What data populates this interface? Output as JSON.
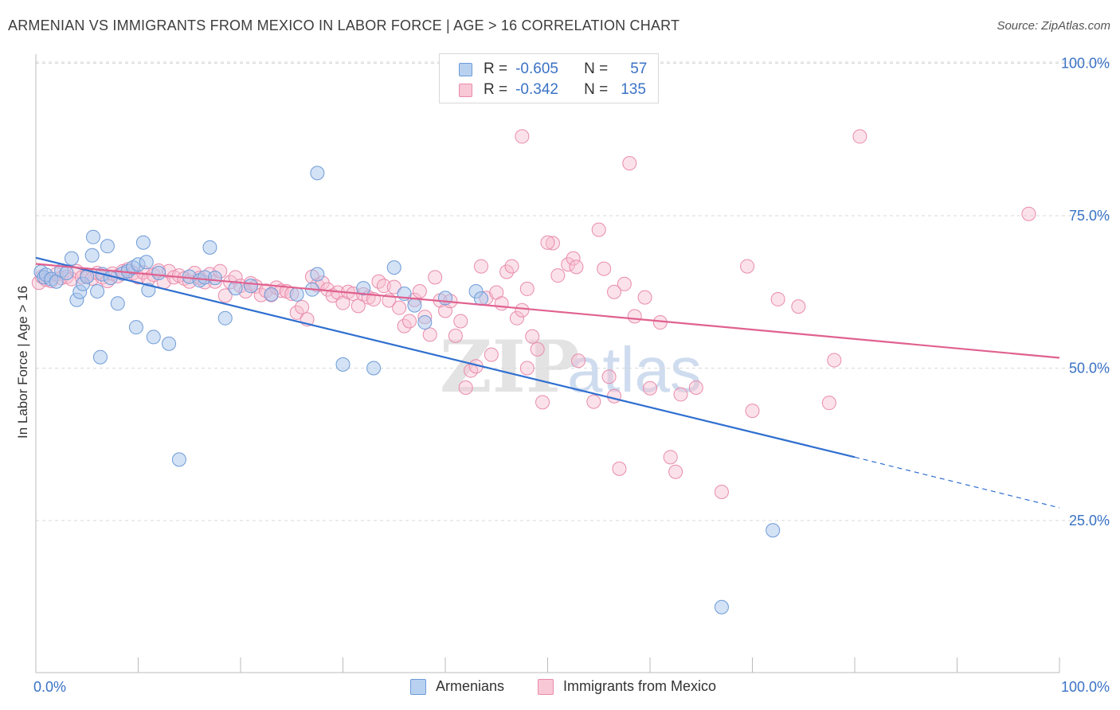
{
  "title": "ARMENIAN VS IMMIGRANTS FROM MEXICO IN LABOR FORCE | AGE > 16 CORRELATION CHART",
  "source": "Source: ZipAtlas.com",
  "watermark": "ZIPatlas",
  "legend_top": {
    "rows": [
      {
        "r_label": "R =",
        "r_value": "-0.605",
        "n_label": "N =",
        "n_value": "57"
      },
      {
        "r_label": "R =",
        "r_value": "-0.342",
        "n_label": "N =",
        "n_value": "135"
      }
    ]
  },
  "legend_bottom": {
    "items": [
      "Armenians",
      "Immigrants from Mexico"
    ]
  },
  "colors": {
    "blue_fill": "#a9c6ec",
    "blue_stroke": "#6d9bd8",
    "blue_line": "#2f6fcf",
    "pink_fill": "#f6bfd0",
    "pink_stroke": "#e98bab",
    "pink_line": "#e0618f",
    "grid": "#d9d9d9",
    "tick_label": "#3a72c4"
  },
  "chart_data": {
    "type": "scatter",
    "title": "ARMENIAN VS IMMIGRANTS FROM MEXICO IN LABOR FORCE | AGE > 16 CORRELATION CHART",
    "xlabel": "",
    "ylabel": "In Labor Force | Age > 16",
    "xlim": [
      0,
      100
    ],
    "ylim": [
      0,
      102
    ],
    "x_tick_labels": [
      "0.0%",
      "100.0%"
    ],
    "y_ticks": [
      25,
      50,
      75,
      100
    ],
    "y_tick_labels": [
      "25.0%",
      "50.0%",
      "75.0%",
      "100.0%"
    ],
    "grid": true,
    "legend_position": "bottom",
    "series": [
      {
        "name": "Armenians",
        "r": -0.605,
        "n": 57,
        "trend": {
          "x_start": 0,
          "y_start": 68.1,
          "x_end_solid": 80,
          "y_end_solid": 35.4,
          "x_end": 100,
          "y_end": 27.1
        },
        "points": [
          [
            0.5,
            65.8
          ],
          [
            0.8,
            64.9
          ],
          [
            1.0,
            65.3
          ],
          [
            1.5,
            64.6
          ],
          [
            2.0,
            64.2
          ],
          [
            2.5,
            66.0
          ],
          [
            3.0,
            65.6
          ],
          [
            3.5,
            68.0
          ],
          [
            4.0,
            61.2
          ],
          [
            4.3,
            62.5
          ],
          [
            4.6,
            63.8
          ],
          [
            5.0,
            65.0
          ],
          [
            5.5,
            68.5
          ],
          [
            5.6,
            71.5
          ],
          [
            6.0,
            62.6
          ],
          [
            6.3,
            51.8
          ],
          [
            6.5,
            65.4
          ],
          [
            7.0,
            70.0
          ],
          [
            7.3,
            64.8
          ],
          [
            8.0,
            60.6
          ],
          [
            8.5,
            65.5
          ],
          [
            9.0,
            65.9
          ],
          [
            9.5,
            66.5
          ],
          [
            9.8,
            56.7
          ],
          [
            10.0,
            67.0
          ],
          [
            10.5,
            70.6
          ],
          [
            10.8,
            67.4
          ],
          [
            11.0,
            62.8
          ],
          [
            11.5,
            55.1
          ],
          [
            12.0,
            65.6
          ],
          [
            13.0,
            54.0
          ],
          [
            14.0,
            35.0
          ],
          [
            15.0,
            65.0
          ],
          [
            16.0,
            64.4
          ],
          [
            16.5,
            64.9
          ],
          [
            17.0,
            69.8
          ],
          [
            17.5,
            64.8
          ],
          [
            18.5,
            58.2
          ],
          [
            19.5,
            63.1
          ],
          [
            21.0,
            63.5
          ],
          [
            23.0,
            62.1
          ],
          [
            25.5,
            62.1
          ],
          [
            27.0,
            62.9
          ],
          [
            27.5,
            65.4
          ],
          [
            27.5,
            82.0
          ],
          [
            30.0,
            50.6
          ],
          [
            32.0,
            63.1
          ],
          [
            33.0,
            50.0
          ],
          [
            35.0,
            66.5
          ],
          [
            36.0,
            62.2
          ],
          [
            37.0,
            60.3
          ],
          [
            38.0,
            57.5
          ],
          [
            40.0,
            61.5
          ],
          [
            43.0,
            62.6
          ],
          [
            43.5,
            61.4
          ],
          [
            72.0,
            23.4
          ],
          [
            67.0,
            10.8
          ]
        ]
      },
      {
        "name": "Immigrants from Mexico",
        "r": -0.342,
        "n": 135,
        "trend": {
          "x_start": 0,
          "y_start": 67.1,
          "x_end": 100,
          "y_end": 51.7
        },
        "points": [
          [
            0.3,
            64.0
          ],
          [
            0.6,
            65.0
          ],
          [
            1.0,
            64.5
          ],
          [
            1.5,
            64.3
          ],
          [
            2.0,
            65.4
          ],
          [
            2.5,
            64.8
          ],
          [
            3.0,
            65.0
          ],
          [
            3.5,
            64.6
          ],
          [
            4.0,
            65.9
          ],
          [
            4.5,
            64.9
          ],
          [
            5.0,
            65.3
          ],
          [
            5.5,
            64.7
          ],
          [
            6.0,
            65.6
          ],
          [
            6.5,
            64.9
          ],
          [
            7.0,
            64.3
          ],
          [
            7.5,
            65.5
          ],
          [
            8.0,
            65.1
          ],
          [
            8.5,
            65.9
          ],
          [
            9.0,
            66.2
          ],
          [
            9.5,
            65.6
          ],
          [
            10.0,
            64.9
          ],
          [
            10.5,
            65.7
          ],
          [
            11.0,
            64.6
          ],
          [
            11.5,
            65.3
          ],
          [
            12.0,
            66.0
          ],
          [
            12.5,
            64.1
          ],
          [
            13.0,
            65.9
          ],
          [
            13.5,
            64.9
          ],
          [
            14.0,
            65.2
          ],
          [
            14.5,
            64.7
          ],
          [
            15.0,
            64.2
          ],
          [
            15.5,
            65.6
          ],
          [
            16.0,
            64.8
          ],
          [
            16.5,
            64.1
          ],
          [
            17.0,
            65.4
          ],
          [
            17.5,
            64.2
          ],
          [
            18.0,
            65.9
          ],
          [
            18.5,
            61.9
          ],
          [
            19.0,
            64.1
          ],
          [
            19.5,
            64.9
          ],
          [
            20.0,
            63.5
          ],
          [
            20.5,
            62.6
          ],
          [
            21.0,
            63.9
          ],
          [
            21.5,
            63.4
          ],
          [
            22.0,
            62.0
          ],
          [
            22.5,
            62.7
          ],
          [
            23.0,
            62.0
          ],
          [
            23.5,
            63.2
          ],
          [
            24.0,
            62.7
          ],
          [
            24.5,
            62.6
          ],
          [
            25.0,
            62.2
          ],
          [
            25.5,
            59.1
          ],
          [
            26.0,
            60.0
          ],
          [
            26.5,
            58.0
          ],
          [
            27.0,
            65.0
          ],
          [
            27.5,
            63.6
          ],
          [
            28.0,
            64.0
          ],
          [
            28.5,
            62.9
          ],
          [
            29.0,
            61.9
          ],
          [
            29.5,
            62.4
          ],
          [
            30.0,
            60.7
          ],
          [
            30.5,
            62.5
          ],
          [
            31.0,
            62.2
          ],
          [
            31.5,
            60.2
          ],
          [
            32.0,
            62.1
          ],
          [
            32.5,
            61.6
          ],
          [
            33.0,
            61.3
          ],
          [
            33.5,
            64.2
          ],
          [
            34.0,
            63.5
          ],
          [
            34.5,
            61.1
          ],
          [
            35.0,
            63.3
          ],
          [
            35.5,
            59.9
          ],
          [
            36.0,
            56.9
          ],
          [
            36.5,
            57.7
          ],
          [
            37.0,
            61.2
          ],
          [
            37.5,
            62.6
          ],
          [
            38.0,
            58.4
          ],
          [
            38.5,
            55.5
          ],
          [
            39.0,
            64.9
          ],
          [
            39.5,
            61.1
          ],
          [
            40.0,
            59.4
          ],
          [
            40.5,
            61.0
          ],
          [
            41.0,
            55.3
          ],
          [
            41.5,
            57.7
          ],
          [
            42.0,
            46.8
          ],
          [
            42.5,
            49.6
          ],
          [
            43.0,
            50.3
          ],
          [
            43.5,
            66.7
          ],
          [
            44.0,
            61.5
          ],
          [
            44.5,
            52.2
          ],
          [
            45.0,
            62.4
          ],
          [
            45.5,
            60.6
          ],
          [
            46.0,
            65.8
          ],
          [
            46.5,
            66.7
          ],
          [
            47.0,
            58.2
          ],
          [
            47.5,
            59.5
          ],
          [
            48.0,
            50.0
          ],
          [
            48.5,
            55.2
          ],
          [
            49.0,
            53.1
          ],
          [
            49.5,
            44.4
          ],
          [
            50.5,
            70.5
          ],
          [
            51.0,
            65.2
          ],
          [
            52.0,
            67.0
          ],
          [
            52.5,
            68.0
          ],
          [
            52.8,
            66.6
          ],
          [
            53.0,
            51.2
          ],
          [
            54.5,
            44.5
          ],
          [
            55.0,
            72.7
          ],
          [
            55.5,
            66.3
          ],
          [
            56.0,
            48.6
          ],
          [
            56.5,
            45.4
          ],
          [
            57.0,
            33.5
          ],
          [
            57.5,
            63.8
          ],
          [
            58.0,
            83.6
          ],
          [
            59.5,
            61.6
          ],
          [
            60.0,
            46.7
          ],
          [
            61.0,
            57.5
          ],
          [
            62.0,
            35.4
          ],
          [
            62.5,
            33.0
          ],
          [
            63.0,
            45.7
          ],
          [
            64.5,
            46.8
          ],
          [
            67.0,
            29.7
          ],
          [
            70.0,
            43.0
          ],
          [
            72.5,
            61.3
          ],
          [
            74.5,
            60.1
          ],
          [
            78.0,
            51.3
          ],
          [
            77.5,
            44.3
          ],
          [
            47.5,
            88.0
          ],
          [
            80.5,
            88.0
          ],
          [
            97.0,
            75.3
          ],
          [
            56.5,
            62.5
          ],
          [
            69.5,
            66.7
          ],
          [
            48.0,
            63.0
          ],
          [
            50.0,
            70.6
          ],
          [
            58.5,
            58.5
          ]
        ]
      }
    ]
  }
}
